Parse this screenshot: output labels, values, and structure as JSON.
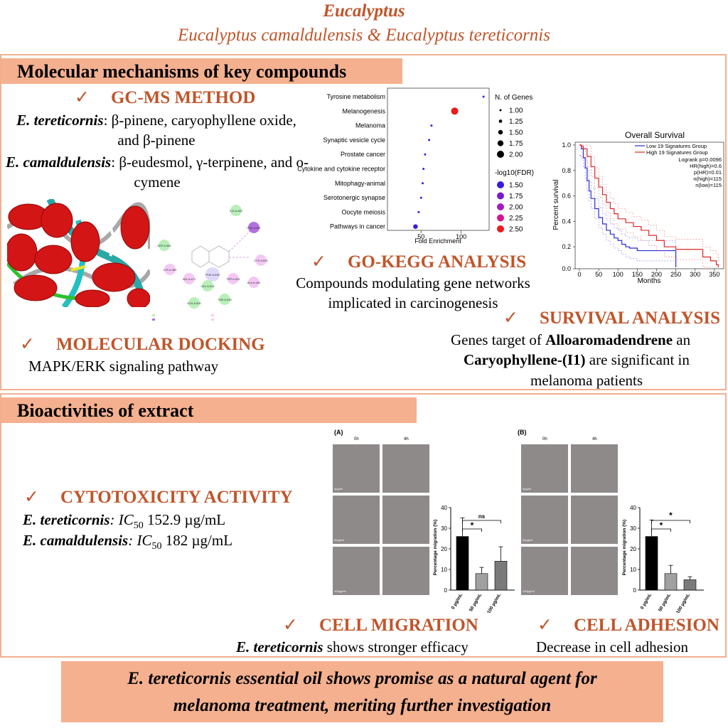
{
  "title": {
    "main": "Eucalyptus",
    "species": "Eucalyptus camaldulensis & Eucalyptus tereticornis"
  },
  "molecular": {
    "header": "Molecular mechanisms of key compounds",
    "gcms": {
      "check": "✓",
      "heading": "GC-MS METHOD",
      "ter_name": "E. tereticornis",
      "ter_text": ": β-pinene, caryophyllene oxide, and β-pinene",
      "cam_name": "E. camaldulensis",
      "cam_text": ": β-eudesmol, γ-terpinene, and o-cymene"
    },
    "docking": {
      "check": "✓",
      "heading": "MOLECULAR DOCKING",
      "text": "MAPK/ERK signaling pathway",
      "residues": [
        "ILE A:463",
        "PHE A:461",
        "ASP A:594",
        "CYS A:532",
        "LYS A:483",
        "VAL A:471",
        "PHE A:595",
        "TRP A:531",
        "ALA A:481",
        "LEU A:514",
        "THR A:529",
        "GLN A:530"
      ]
    },
    "gokegg": {
      "check": "✓",
      "heading": "GO-KEGG ANALYSIS",
      "text": "Compounds modulating gene networks implicated in carcinogenesis"
    },
    "survival": {
      "check": "✓",
      "heading": "SURVIVAL ANALYSIS",
      "text1": "Genes target of ",
      "bold1": "Alloaromadendrene",
      "text2": " an",
      "bold2": "Caryophyllene-(I1)",
      "text3": " are significant in",
      "text4": "melanoma patients"
    }
  },
  "bio": {
    "header": "Bioactivities of extract",
    "cyto": {
      "check": "✓",
      "heading": "CYTOTOXICITY ACTIVITY",
      "ter_name": "E. tereticornis",
      "ter_ic": ": IC",
      "sub": "50",
      "ter_val": " 152.9 µg/mL",
      "cam_name": "E. camaldulensis",
      "cam_ic": ": IC",
      "cam_val": " 182 µg/mL"
    },
    "migration": {
      "check": "✓",
      "heading": "CELL MIGRATION",
      "bold": "E. tereticornis",
      "text": " shows stronger efficacy",
      "panel": "(A)"
    },
    "adhesion": {
      "check": "✓",
      "heading": "CELL ADHESION",
      "text": "Decrease in cell adhesion",
      "panel": "(B)"
    },
    "photo_labels": {
      "t0": "0h",
      "t4": "4h",
      "r1": "0µg/ml",
      "r2": "50µg/ml",
      "r3": "100µg/ml"
    }
  },
  "conclusion": {
    "line1": "E. tereticornis essential oil shows promise as a natural agent for",
    "line2": "melanoma treatment, meriting further investigation"
  },
  "chart_data": [
    {
      "type": "scatter",
      "title": "",
      "xlabel": "Fold Enrichment",
      "categories": [
        "Tyrosine metabolism",
        "Melanogenesis",
        "Melanoma",
        "Synaptic vesicle cycle",
        "Prostate cancer",
        "Cytokine and cytokine receptor",
        "Mitophagy-animal",
        "Serotonergic synapse",
        "Oocyte meiosis",
        "Pathways in cancer"
      ],
      "x": [
        128,
        92,
        63,
        60,
        55,
        53,
        52,
        50,
        47,
        43
      ],
      "size": [
        1.0,
        2.0,
        1.0,
        1.0,
        1.0,
        1.0,
        1.0,
        1.0,
        1.0,
        1.5
      ],
      "fdr": [
        1.5,
        2.5,
        1.5,
        1.5,
        1.5,
        1.5,
        1.5,
        1.5,
        1.5,
        1.5
      ],
      "xticks": [
        50,
        100
      ],
      "xlim": [
        8,
        135
      ],
      "legend_size_title": "N. of Genes",
      "legend_sizes": [
        "1.00",
        "1.25",
        "1.50",
        "1.75",
        "2.00"
      ],
      "legend_color_title": "-log10(FDR)",
      "legend_colors": [
        "1.50",
        "1.75",
        "2.00",
        "2.25",
        "2.50"
      ],
      "colors": [
        "#3a1adf",
        "#7a1ad0",
        "#a41ac0",
        "#d21690",
        "#ec1a1a"
      ]
    },
    {
      "type": "line",
      "title": "Overall Survival",
      "xlabel": "Months",
      "ylabel": "Percent survival",
      "xticks": [
        0,
        50,
        100,
        150,
        200,
        250,
        300,
        350
      ],
      "yticks": [
        0.0,
        0.2,
        0.4,
        0.6,
        0.8,
        1.0
      ],
      "xlim": [
        0,
        365
      ],
      "ylim": [
        0,
        1.0
      ],
      "legend": [
        "Low 19 Signatures Group",
        "High 19 Signatures Group"
      ],
      "stats": [
        "Logrank p=0.0096",
        "HR(high)=0.6",
        "p(HR)=0.01",
        "n(high)=115",
        "n(low)=115"
      ],
      "series": [
        {
          "name": "Low 19 Signatures Group",
          "color": "#2b2bd6",
          "x": [
            0,
            5,
            10,
            15,
            20,
            25,
            30,
            40,
            50,
            60,
            70,
            80,
            90,
            100,
            110,
            120,
            130,
            150,
            170,
            200,
            220,
            240,
            250
          ],
          "y": [
            1.0,
            0.97,
            0.9,
            0.82,
            0.72,
            0.64,
            0.58,
            0.5,
            0.43,
            0.38,
            0.33,
            0.3,
            0.27,
            0.25,
            0.22,
            0.2,
            0.19,
            0.17,
            0.17,
            0.17,
            0.17,
            0.17,
            0.0
          ]
        },
        {
          "name": "High 19 Signatures Group",
          "color": "#e02424",
          "x": [
            0,
            5,
            10,
            20,
            30,
            40,
            50,
            60,
            70,
            80,
            90,
            100,
            120,
            140,
            160,
            180,
            200,
            220,
            250,
            280,
            300,
            320,
            340,
            355,
            360
          ],
          "y": [
            1.0,
            0.99,
            0.97,
            0.91,
            0.83,
            0.74,
            0.67,
            0.61,
            0.55,
            0.5,
            0.46,
            0.42,
            0.39,
            0.36,
            0.33,
            0.29,
            0.25,
            0.2,
            0.18,
            0.18,
            0.18,
            0.12,
            0.09,
            0.06,
            0.0
          ]
        }
      ]
    },
    {
      "type": "bar",
      "title": "",
      "ylabel": "Percentage migration (%)",
      "categories": [
        "0 µg/mL",
        "50 µg/mL",
        "100 µg/mL"
      ],
      "values": [
        26,
        8,
        14
      ],
      "errors": [
        9,
        3,
        7
      ],
      "ylim": [
        0,
        40
      ],
      "yticks": [
        0,
        10,
        20,
        30,
        40
      ],
      "colors": [
        "#000000",
        "#a0a0a0",
        "#7a7a7a"
      ],
      "significance": [
        "*",
        "ns"
      ]
    },
    {
      "type": "bar",
      "title": "",
      "ylabel": "Percentage migration (%)",
      "categories": [
        "0 µg/mL",
        "50 µg/mL",
        "100 µg/mL"
      ],
      "values": [
        26,
        8,
        5
      ],
      "errors": [
        8,
        4,
        1.5
      ],
      "ylim": [
        0,
        40
      ],
      "yticks": [
        0,
        10,
        20,
        30,
        40
      ],
      "colors": [
        "#000000",
        "#a0a0a0",
        "#7a7a7a"
      ],
      "significance": [
        "*",
        "*"
      ]
    }
  ]
}
